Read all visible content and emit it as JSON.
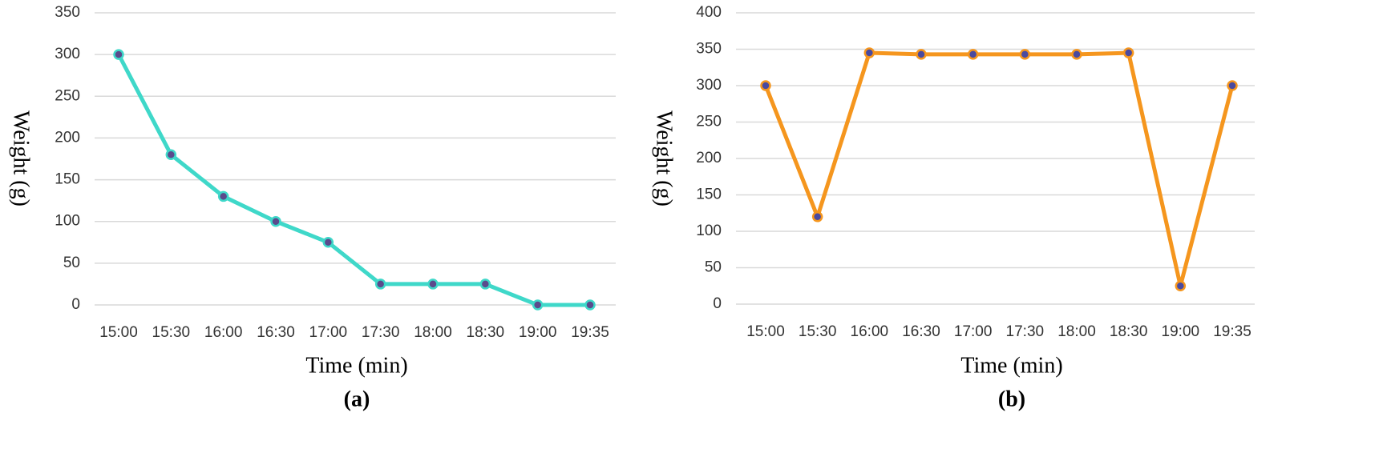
{
  "chart_data": [
    {
      "type": "line",
      "panel_label": "(a)",
      "xlabel": "Time (min)",
      "ylabel": "Weight (g)",
      "categories": [
        "15:00",
        "15:30",
        "16:00",
        "16:30",
        "17:00",
        "17:30",
        "18:00",
        "18:30",
        "19:00",
        "19:35"
      ],
      "values": [
        300,
        180,
        130,
        100,
        75,
        25,
        25,
        25,
        0,
        0
      ],
      "color": "#3fd8c9",
      "marker_color": "#5b4a8c",
      "ylim": [
        0,
        350
      ],
      "yticks": [
        0,
        50,
        100,
        150,
        200,
        250,
        300,
        350
      ],
      "grid": true
    },
    {
      "type": "line",
      "panel_label": "(b)",
      "xlabel": "Time (min)",
      "ylabel": "Weight (g)",
      "categories": [
        "15:00",
        "15:30",
        "16:00",
        "16:30",
        "17:00",
        "17:30",
        "18:00",
        "18:30",
        "19:00",
        "19:35"
      ],
      "values": [
        300,
        120,
        345,
        343,
        343,
        343,
        343,
        345,
        25,
        300
      ],
      "color": "#f5961e",
      "marker_color": "#4a4aa0",
      "ylim": [
        0,
        400
      ],
      "yticks": [
        0,
        50,
        100,
        150,
        200,
        250,
        300,
        350,
        400
      ],
      "grid": true
    }
  ]
}
